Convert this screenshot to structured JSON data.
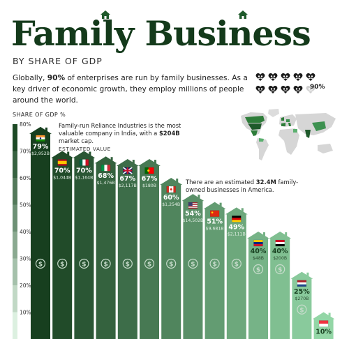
{
  "header": {
    "title": "Family Business",
    "subtitle": "BY SHARE OF GDP",
    "intro_pre": "Globally, ",
    "intro_bold": "90%",
    "intro_post": " of enterprises are run by family businesses. As a key driver of economic growth, they employ millions of people around the world.",
    "icons_legend_value": "90%",
    "icons_filled": 9,
    "icons_total": 10
  },
  "annotations": {
    "india_pre": "Family-run Reliance Industries is the most valuable company in India, with a ",
    "india_bold": "$204B",
    "india_post": " market cap.",
    "estimated_value_label": "ESTIMATED VALUE",
    "america_pre": "There are an estimated ",
    "america_bold": "32.4M",
    "america_post": " family-owned businesses in America."
  },
  "colors": {
    "title": "#143a1b",
    "bar_dark": "#173f1f",
    "bar_light": "#93d6a6",
    "axis_bar": "#1d4a25",
    "dollar": "#c8dccc"
  },
  "chart_data": {
    "type": "bar",
    "ylabel": "SHARE OF GDP %",
    "ylim": [
      0,
      80
    ],
    "yticks": [
      10,
      20,
      30,
      40,
      50,
      60,
      70,
      80
    ],
    "ytick_labels": [
      "10%",
      "20%",
      "30%",
      "40%",
      "50%",
      "60%",
      "70%",
      "80%"
    ],
    "grid": false,
    "categories": [
      "India",
      "Spain",
      "Mexico",
      "Italy",
      "UK",
      "Portugal",
      "Canada",
      "USA",
      "China",
      "Germany",
      "Venezuela",
      "Egypt",
      "Netherlands",
      "Singapore"
    ],
    "values": [
      79,
      70,
      70,
      68,
      67,
      67,
      60,
      54,
      51,
      49,
      40,
      40,
      25,
      10
    ],
    "value_labels": [
      "79%",
      "70%",
      "70%",
      "68%",
      "67%",
      "67%",
      "60%",
      "54%",
      "51%",
      "49%",
      "40%",
      "40%",
      "25%",
      "10%"
    ],
    "estimated_values": [
      "$2,952B",
      "$1,044B",
      "$1,164B",
      "$1,476B",
      "$2,117B",
      "$180B",
      "$1,254B",
      "$14,502B",
      "$9,681B",
      "$2,111B",
      "$48B",
      "$200B",
      "$270B",
      ""
    ],
    "flag_icons": [
      "india-flag-icon",
      "spain-flag-icon",
      "mexico-flag-icon",
      "italy-flag-icon",
      "uk-flag-icon",
      "portugal-flag-icon",
      "canada-flag-icon",
      "usa-flag-icon",
      "china-flag-icon",
      "germany-flag-icon",
      "venezuela-flag-icon",
      "egypt-flag-icon",
      "netherlands-flag-icon",
      "singapore-flag-icon"
    ]
  }
}
